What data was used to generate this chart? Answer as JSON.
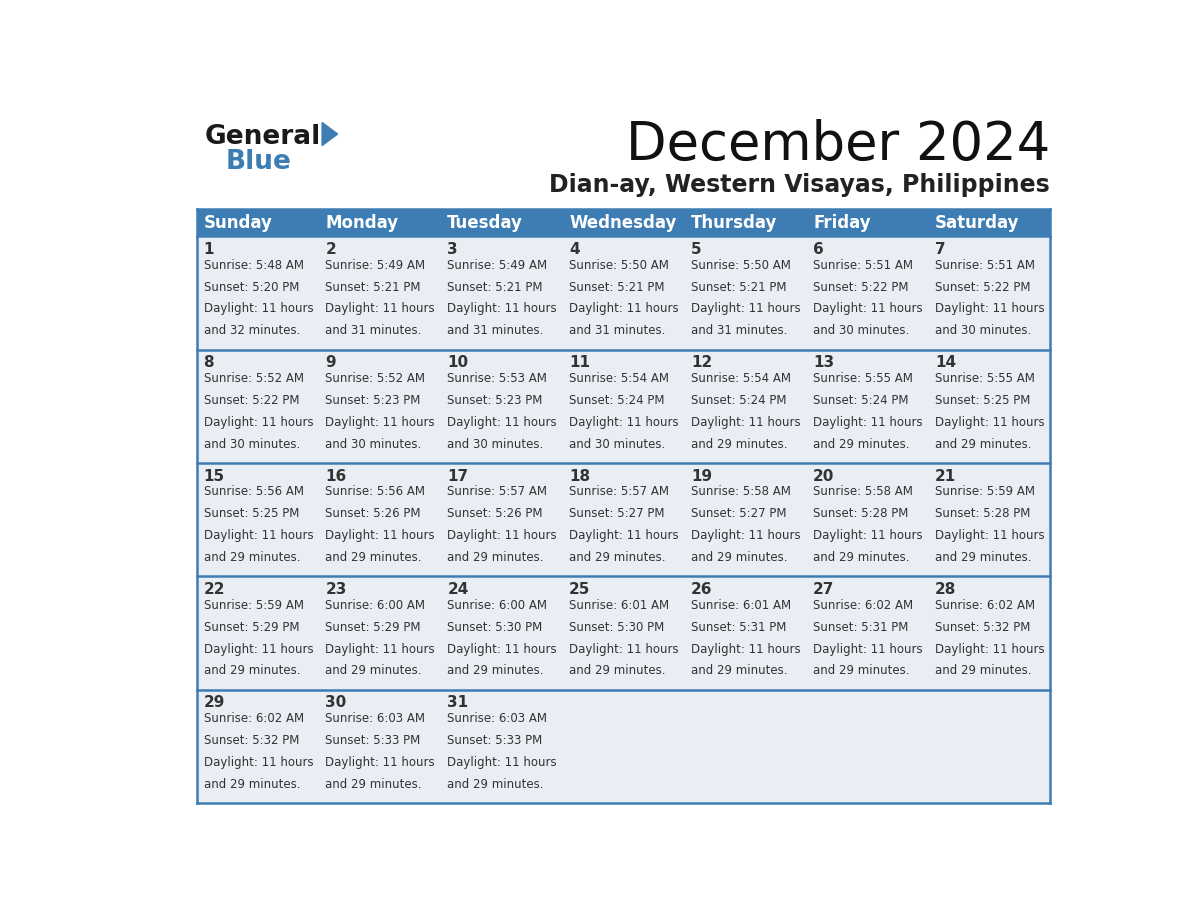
{
  "title": "December 2024",
  "subtitle": "Dian-ay, Western Visayas, Philippines",
  "days_of_week": [
    "Sunday",
    "Monday",
    "Tuesday",
    "Wednesday",
    "Thursday",
    "Friday",
    "Saturday"
  ],
  "header_bg": "#3d7db3",
  "header_text": "#ffffff",
  "cell_bg": "#e8eef4",
  "cell_bg_last": "#e8eef4",
  "border_color": "#3d7db3",
  "day_number_color": "#333333",
  "cell_text_color": "#333333",
  "calendar": [
    [
      {
        "day": 1,
        "sunrise": "5:48 AM",
        "sunset": "5:20 PM",
        "daylight": "11 hours and 32 minutes."
      },
      {
        "day": 2,
        "sunrise": "5:49 AM",
        "sunset": "5:21 PM",
        "daylight": "11 hours and 31 minutes."
      },
      {
        "day": 3,
        "sunrise": "5:49 AM",
        "sunset": "5:21 PM",
        "daylight": "11 hours and 31 minutes."
      },
      {
        "day": 4,
        "sunrise": "5:50 AM",
        "sunset": "5:21 PM",
        "daylight": "11 hours and 31 minutes."
      },
      {
        "day": 5,
        "sunrise": "5:50 AM",
        "sunset": "5:21 PM",
        "daylight": "11 hours and 31 minutes."
      },
      {
        "day": 6,
        "sunrise": "5:51 AM",
        "sunset": "5:22 PM",
        "daylight": "11 hours and 30 minutes."
      },
      {
        "day": 7,
        "sunrise": "5:51 AM",
        "sunset": "5:22 PM",
        "daylight": "11 hours and 30 minutes."
      }
    ],
    [
      {
        "day": 8,
        "sunrise": "5:52 AM",
        "sunset": "5:22 PM",
        "daylight": "11 hours and 30 minutes."
      },
      {
        "day": 9,
        "sunrise": "5:52 AM",
        "sunset": "5:23 PM",
        "daylight": "11 hours and 30 minutes."
      },
      {
        "day": 10,
        "sunrise": "5:53 AM",
        "sunset": "5:23 PM",
        "daylight": "11 hours and 30 minutes."
      },
      {
        "day": 11,
        "sunrise": "5:54 AM",
        "sunset": "5:24 PM",
        "daylight": "11 hours and 30 minutes."
      },
      {
        "day": 12,
        "sunrise": "5:54 AM",
        "sunset": "5:24 PM",
        "daylight": "11 hours and 29 minutes."
      },
      {
        "day": 13,
        "sunrise": "5:55 AM",
        "sunset": "5:24 PM",
        "daylight": "11 hours and 29 minutes."
      },
      {
        "day": 14,
        "sunrise": "5:55 AM",
        "sunset": "5:25 PM",
        "daylight": "11 hours and 29 minutes."
      }
    ],
    [
      {
        "day": 15,
        "sunrise": "5:56 AM",
        "sunset": "5:25 PM",
        "daylight": "11 hours and 29 minutes."
      },
      {
        "day": 16,
        "sunrise": "5:56 AM",
        "sunset": "5:26 PM",
        "daylight": "11 hours and 29 minutes."
      },
      {
        "day": 17,
        "sunrise": "5:57 AM",
        "sunset": "5:26 PM",
        "daylight": "11 hours and 29 minutes."
      },
      {
        "day": 18,
        "sunrise": "5:57 AM",
        "sunset": "5:27 PM",
        "daylight": "11 hours and 29 minutes."
      },
      {
        "day": 19,
        "sunrise": "5:58 AM",
        "sunset": "5:27 PM",
        "daylight": "11 hours and 29 minutes."
      },
      {
        "day": 20,
        "sunrise": "5:58 AM",
        "sunset": "5:28 PM",
        "daylight": "11 hours and 29 minutes."
      },
      {
        "day": 21,
        "sunrise": "5:59 AM",
        "sunset": "5:28 PM",
        "daylight": "11 hours and 29 minutes."
      }
    ],
    [
      {
        "day": 22,
        "sunrise": "5:59 AM",
        "sunset": "5:29 PM",
        "daylight": "11 hours and 29 minutes."
      },
      {
        "day": 23,
        "sunrise": "6:00 AM",
        "sunset": "5:29 PM",
        "daylight": "11 hours and 29 minutes."
      },
      {
        "day": 24,
        "sunrise": "6:00 AM",
        "sunset": "5:30 PM",
        "daylight": "11 hours and 29 minutes."
      },
      {
        "day": 25,
        "sunrise": "6:01 AM",
        "sunset": "5:30 PM",
        "daylight": "11 hours and 29 minutes."
      },
      {
        "day": 26,
        "sunrise": "6:01 AM",
        "sunset": "5:31 PM",
        "daylight": "11 hours and 29 minutes."
      },
      {
        "day": 27,
        "sunrise": "6:02 AM",
        "sunset": "5:31 PM",
        "daylight": "11 hours and 29 minutes."
      },
      {
        "day": 28,
        "sunrise": "6:02 AM",
        "sunset": "5:32 PM",
        "daylight": "11 hours and 29 minutes."
      }
    ],
    [
      {
        "day": 29,
        "sunrise": "6:02 AM",
        "sunset": "5:32 PM",
        "daylight": "11 hours and 29 minutes."
      },
      {
        "day": 30,
        "sunrise": "6:03 AM",
        "sunset": "5:33 PM",
        "daylight": "11 hours and 29 minutes."
      },
      {
        "day": 31,
        "sunrise": "6:03 AM",
        "sunset": "5:33 PM",
        "daylight": "11 hours and 29 minutes."
      },
      null,
      null,
      null,
      null
    ]
  ],
  "logo_triangle_color": "#3d7db3",
  "title_fontsize": 38,
  "subtitle_fontsize": 17,
  "header_fontsize": 12,
  "day_num_fontsize": 11,
  "cell_fontsize": 8.5
}
